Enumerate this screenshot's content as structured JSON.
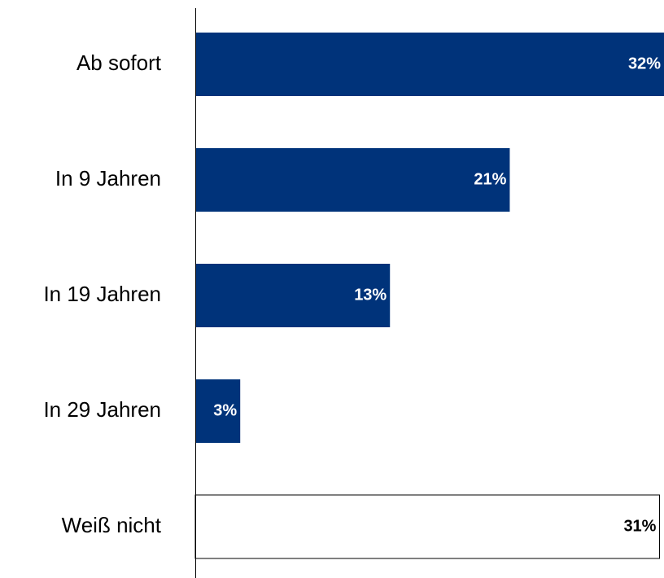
{
  "chart_data": {
    "type": "barh",
    "categories": [
      "Ab sofort",
      "In 9 Jahren",
      "In 19 Jahren",
      "In 29 Jahren",
      "Weiß nicht"
    ],
    "values": [
      32,
      21,
      13,
      3,
      31
    ],
    "value_labels": [
      "32%",
      "21%",
      "13%",
      "3%",
      "31%"
    ],
    "colors": [
      "#00337a",
      "#00337a",
      "#00337a",
      "#00337a",
      "#ffffff"
    ],
    "label_colors": [
      "#ffffff",
      "#ffffff",
      "#ffffff",
      "#ffffff",
      "#000000"
    ],
    "xlim": [
      0,
      31.3
    ]
  }
}
